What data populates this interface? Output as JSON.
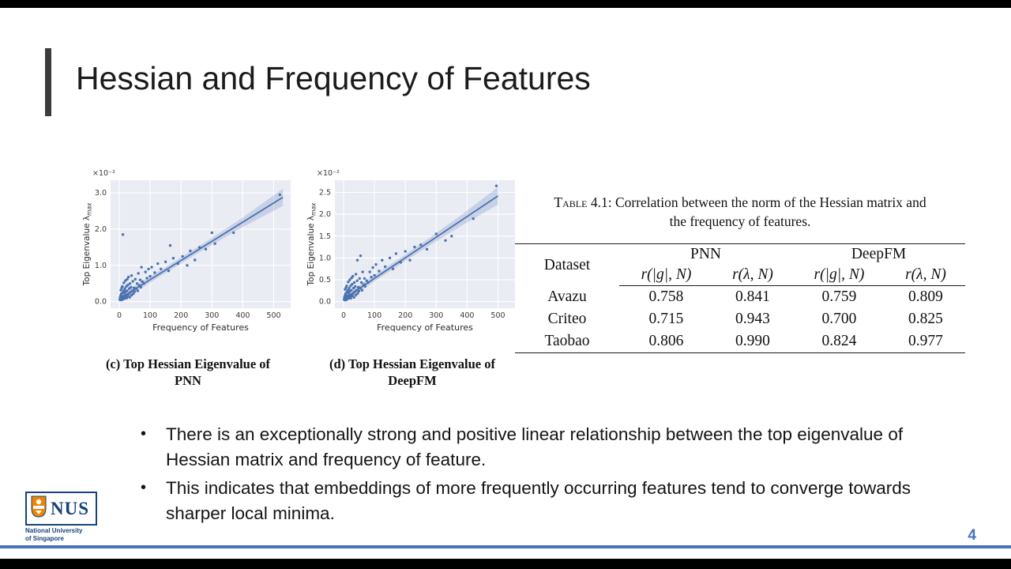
{
  "slide": {
    "title": "Hessian and Frequency of Features",
    "page_number": "4"
  },
  "colors": {
    "accent_blue": "#4a72b8",
    "page_number_blue": "#4472c4",
    "scatter_blue": "#4c72b0",
    "plot_background": "#eaecf4",
    "nus_blue": "#16437c",
    "nus_orange": "#f08300"
  },
  "figures": {
    "c": {
      "line1": "(c) Top Hessian Eigenvalue of",
      "line2": "PNN"
    },
    "d": {
      "line1": "(d) Top Hessian Eigenvalue of",
      "line2": "DeepFM"
    }
  },
  "chart_data": [
    {
      "type": "scatter",
      "name": "top-hessian-eigenvalue-pnn",
      "xlabel": "Frequency of Features",
      "ylabel_main": "Top Eigenvalue λ",
      "ylabel_sub": "max",
      "y_offset_label": "×10⁻²",
      "xlim": [
        -28,
        555
      ],
      "ylim": [
        -0.18,
        3.35
      ],
      "xticks": [
        0,
        100,
        200,
        300,
        400,
        500
      ],
      "yticks": [
        0,
        1,
        2,
        3
      ],
      "ytick_labels": [
        "0.0",
        "1.0",
        "2.0",
        "3.0"
      ],
      "bg": "#eaecf4",
      "point_color": "#4c72b0",
      "regression_line": {
        "x": [
          0,
          530
        ],
        "y": [
          0.08,
          2.88
        ]
      },
      "band": {
        "x": [
          0,
          130,
          265,
          400,
          530
        ],
        "low": [
          -0.02,
          0.69,
          1.39,
          2.06,
          2.64
        ],
        "high": [
          0.18,
          0.85,
          1.57,
          2.32,
          3.12
        ]
      },
      "points": [
        [
          2,
          0.06
        ],
        [
          3,
          0.12
        ],
        [
          4,
          0.05
        ],
        [
          5,
          0.18
        ],
        [
          5,
          0.32
        ],
        [
          6,
          0.08
        ],
        [
          7,
          0.22
        ],
        [
          8,
          0.1
        ],
        [
          8,
          0.38
        ],
        [
          9,
          0.05
        ],
        [
          10,
          0.15
        ],
        [
          10,
          0.42
        ],
        [
          11,
          0.08
        ],
        [
          12,
          0.25
        ],
        [
          12,
          1.85
        ],
        [
          13,
          0.1
        ],
        [
          14,
          0.3
        ],
        [
          15,
          0.16
        ],
        [
          15,
          0.52
        ],
        [
          16,
          0.08
        ],
        [
          17,
          0.24
        ],
        [
          18,
          0.36
        ],
        [
          19,
          0.12
        ],
        [
          20,
          0.28
        ],
        [
          20,
          0.58
        ],
        [
          22,
          0.18
        ],
        [
          23,
          0.42
        ],
        [
          24,
          0.1
        ],
        [
          25,
          0.3
        ],
        [
          26,
          0.62
        ],
        [
          27,
          0.15
        ],
        [
          28,
          0.46
        ],
        [
          30,
          0.2
        ],
        [
          30,
          0.68
        ],
        [
          32,
          0.36
        ],
        [
          34,
          0.12
        ],
        [
          35,
          0.5
        ],
        [
          36,
          0.26
        ],
        [
          38,
          0.4
        ],
        [
          40,
          0.18
        ],
        [
          40,
          0.72
        ],
        [
          42,
          0.3
        ],
        [
          44,
          0.56
        ],
        [
          46,
          0.22
        ],
        [
          48,
          0.38
        ],
        [
          50,
          0.28
        ],
        [
          52,
          0.62
        ],
        [
          55,
          0.36
        ],
        [
          58,
          0.5
        ],
        [
          60,
          0.3
        ],
        [
          62,
          0.78
        ],
        [
          65,
          0.45
        ],
        [
          68,
          0.6
        ],
        [
          70,
          0.4
        ],
        [
          72,
          0.95
        ],
        [
          75,
          0.55
        ],
        [
          80,
          0.5
        ],
        [
          85,
          0.82
        ],
        [
          90,
          0.65
        ],
        [
          95,
          0.9
        ],
        [
          100,
          0.7
        ],
        [
          105,
          0.95
        ],
        [
          115,
          0.8
        ],
        [
          125,
          1.05
        ],
        [
          135,
          0.9
        ],
        [
          150,
          1.1
        ],
        [
          160,
          0.85
        ],
        [
          165,
          1.55
        ],
        [
          175,
          1.2
        ],
        [
          190,
          1.05
        ],
        [
          205,
          1.25
        ],
        [
          220,
          1.0
        ],
        [
          230,
          1.4
        ],
        [
          245,
          1.15
        ],
        [
          260,
          1.5
        ],
        [
          280,
          1.45
        ],
        [
          300,
          1.9
        ],
        [
          310,
          1.6
        ],
        [
          370,
          1.9
        ],
        [
          520,
          2.95
        ]
      ]
    },
    {
      "type": "scatter",
      "name": "top-hessian-eigenvalue-deepfm",
      "xlabel": "Frequency of Features",
      "ylabel_main": "Top Eigenvalue λ",
      "ylabel_sub": "max",
      "y_offset_label": "×10⁻²",
      "xlim": [
        -28,
        555
      ],
      "ylim": [
        -0.15,
        2.78
      ],
      "xticks": [
        0,
        100,
        200,
        300,
        400,
        500
      ],
      "yticks": [
        0,
        0.5,
        1,
        1.5,
        2,
        2.5
      ],
      "ytick_labels": [
        "0.0",
        "0.5",
        "1.0",
        "1.5",
        "2.0",
        "2.5"
      ],
      "bg": "#eaecf4",
      "point_color": "#4c72b0",
      "regression_line": {
        "x": [
          0,
          500
        ],
        "y": [
          0.06,
          2.42
        ]
      },
      "band": {
        "x": [
          0,
          125,
          250,
          375,
          500
        ],
        "low": [
          -0.02,
          0.58,
          1.16,
          1.71,
          2.22
        ],
        "high": [
          0.14,
          0.72,
          1.32,
          1.95,
          2.62
        ]
      },
      "points": [
        [
          2,
          0.05
        ],
        [
          3,
          0.1
        ],
        [
          4,
          0.04
        ],
        [
          5,
          0.15
        ],
        [
          5,
          0.28
        ],
        [
          6,
          0.06
        ],
        [
          7,
          0.19
        ],
        [
          8,
          0.09
        ],
        [
          8,
          0.32
        ],
        [
          9,
          0.04
        ],
        [
          10,
          0.13
        ],
        [
          10,
          0.36
        ],
        [
          11,
          0.07
        ],
        [
          12,
          0.22
        ],
        [
          13,
          0.08
        ],
        [
          14,
          0.26
        ],
        [
          15,
          0.14
        ],
        [
          15,
          0.45
        ],
        [
          16,
          0.07
        ],
        [
          17,
          0.2
        ],
        [
          18,
          0.31
        ],
        [
          19,
          0.1
        ],
        [
          20,
          0.24
        ],
        [
          20,
          0.5
        ],
        [
          22,
          0.15
        ],
        [
          23,
          0.36
        ],
        [
          24,
          0.08
        ],
        [
          25,
          0.26
        ],
        [
          26,
          0.54
        ],
        [
          27,
          0.13
        ],
        [
          28,
          0.4
        ],
        [
          30,
          0.17
        ],
        [
          30,
          0.58
        ],
        [
          32,
          0.31
        ],
        [
          34,
          0.1
        ],
        [
          35,
          0.44
        ],
        [
          36,
          0.22
        ],
        [
          38,
          0.35
        ],
        [
          40,
          0.15
        ],
        [
          40,
          0.63
        ],
        [
          42,
          0.26
        ],
        [
          44,
          0.48
        ],
        [
          45,
          0.95
        ],
        [
          46,
          0.19
        ],
        [
          48,
          0.33
        ],
        [
          50,
          0.24
        ],
        [
          52,
          0.53
        ],
        [
          55,
          0.31
        ],
        [
          55,
          1.05
        ],
        [
          58,
          0.44
        ],
        [
          60,
          0.26
        ],
        [
          62,
          0.68
        ],
        [
          65,
          0.39
        ],
        [
          68,
          0.53
        ],
        [
          70,
          0.35
        ],
        [
          75,
          0.48
        ],
        [
          80,
          0.44
        ],
        [
          85,
          0.68
        ],
        [
          90,
          0.56
        ],
        [
          95,
          0.78
        ],
        [
          100,
          0.6
        ],
        [
          105,
          0.85
        ],
        [
          115,
          0.7
        ],
        [
          125,
          0.95
        ],
        [
          135,
          0.8
        ],
        [
          150,
          1.0
        ],
        [
          160,
          0.75
        ],
        [
          170,
          1.1
        ],
        [
          185,
          0.9
        ],
        [
          200,
          1.15
        ],
        [
          215,
          0.95
        ],
        [
          230,
          1.25
        ],
        [
          250,
          1.3
        ],
        [
          270,
          1.2
        ],
        [
          300,
          1.55
        ],
        [
          330,
          1.4
        ],
        [
          350,
          1.5
        ],
        [
          420,
          1.9
        ],
        [
          495,
          2.65
        ]
      ]
    }
  ],
  "table": {
    "caption_label": "Table 4.1:",
    "caption_line1": "Correlation between the norm of the Hessian matrix and",
    "caption_line2": "the frequency of features.",
    "dataset_header": "Dataset",
    "col_group_headers": [
      "PNN",
      "DeepFM"
    ],
    "sub_headers": [
      "r(|g|, N)",
      "r(λ, N)",
      "r(|g|, N)",
      "r(λ, N)"
    ],
    "rows": [
      {
        "dataset": "Avazu",
        "values": [
          "0.758",
          "0.841",
          "0.759",
          "0.809"
        ]
      },
      {
        "dataset": "Criteo",
        "values": [
          "0.715",
          "0.943",
          "0.700",
          "0.825"
        ]
      },
      {
        "dataset": "Taobao",
        "values": [
          "0.806",
          "0.990",
          "0.824",
          "0.977"
        ]
      }
    ]
  },
  "bullets": [
    "There is an exceptionally strong and positive linear relationship between the top eigenvalue of Hessian matrix and frequency of feature.",
    "This indicates that embeddings of more frequently occurring features tend to converge towards sharper local minima."
  ],
  "logo": {
    "acronym": "NUS",
    "line1": "National University",
    "line2": "of Singapore"
  }
}
